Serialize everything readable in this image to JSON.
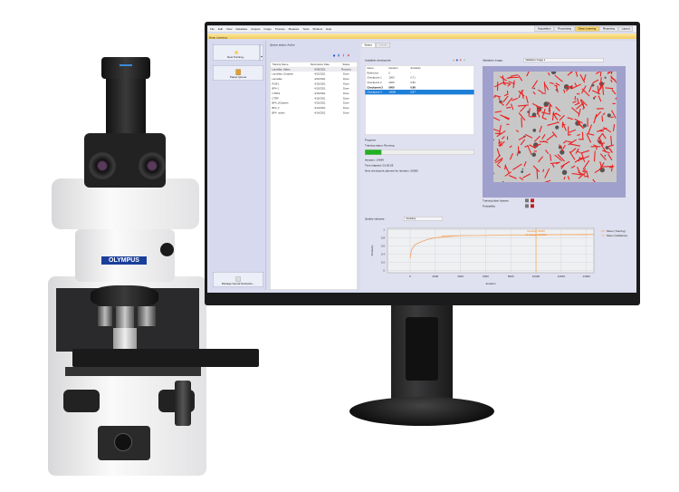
{
  "menu": [
    "File",
    "Edit",
    "View",
    "Database",
    "Acquire",
    "Image",
    "Process",
    "Measure",
    "Tools",
    "Window",
    "Help"
  ],
  "layouts": [
    "Acquisition",
    "Processing",
    "Deep Learning",
    "Reporting",
    "Layout"
  ],
  "active_layout": "Deep Learning",
  "toolbar_title": "Deep Learning",
  "left": {
    "new_training": "New Training...",
    "pause_queue": "Pause Queue",
    "manage": "Manage Neural Networks..."
  },
  "queue": {
    "status": "Queue status: Active",
    "columns": [
      "Training Name",
      "Submission Date",
      "Status"
    ],
    "rows": [
      [
        "Lamellae_flakes",
        "4/28/2021",
        "Running"
      ],
      [
        "Lamellae_Graphite",
        "4/22/2021",
        "Done"
      ],
      [
        "Lamellae",
        "4/22/2021",
        "Done"
      ],
      [
        "PCB-1",
        "4/15/2021",
        "Done"
      ],
      [
        "BF4-1",
        "4/15/2021",
        "Done"
      ],
      [
        "CTRF2",
        "4/15/2021",
        "Done"
      ],
      [
        "CTRF",
        "4/15/2021",
        "Done"
      ],
      [
        "BF4_2Classes",
        "4/15/2021",
        "Done"
      ],
      [
        "BF4_2",
        "4/14/2021",
        "Done"
      ],
      [
        "BF4_nettes",
        "4/14/2021",
        "Done"
      ]
    ]
  },
  "status_tabs": [
    "Status",
    "Details"
  ],
  "checkpoints": {
    "title": "Available checkpoints",
    "columns": [
      "Name",
      "Iteration",
      "Similarity"
    ],
    "rows": [
      [
        "Reference",
        "0",
        "-"
      ],
      [
        "Checkpoint 1",
        "1000",
        "0.71"
      ],
      [
        "Checkpoint 2",
        "2000",
        "0.80"
      ],
      [
        "Checkpoint 3",
        "5000",
        "0.88"
      ],
      [
        "Checkpoint 4",
        "10000",
        "0.87"
      ]
    ],
    "bold_row": 3,
    "selected_row": 4
  },
  "progress": {
    "label": "Progress",
    "status": "Training status: Running",
    "fraction": 0.15,
    "iteration": "Iteration: 14649",
    "elapsed": "Time elapsed: 01:05:28",
    "next": "Next checkpoint planned for iteration: 20000",
    "bar_color": "#22b022"
  },
  "validation": {
    "label": "Validation image:",
    "value": "Validation Image 1",
    "classes": "Training label classes",
    "probability": "Probability"
  },
  "quality": {
    "label": "Quality indicator:",
    "value": "Similarity"
  },
  "chart_data": {
    "type": "line",
    "xlabel": "Iteration",
    "ylabel": "Similarity",
    "xticks": [
      0,
      2000,
      4000,
      6000,
      8000,
      10000,
      12000,
      14000
    ],
    "yticks": [
      0,
      0.2,
      0.4,
      0.6,
      0.8,
      1
    ],
    "xlim": [
      -1800,
      14600
    ],
    "ylim": [
      -0.05,
      1.03
    ],
    "grid": true,
    "legend": "right",
    "series": [
      {
        "name": "Mean (Training)",
        "color": "#f0a060",
        "x": [
          0,
          100,
          300,
          500,
          1000,
          1500,
          2000,
          3000,
          4000,
          6000,
          8000,
          10000,
          12000,
          14000,
          14600
        ],
        "y": [
          0.3,
          0.5,
          0.6,
          0.65,
          0.72,
          0.77,
          0.8,
          0.83,
          0.85,
          0.86,
          0.87,
          0.87,
          0.88,
          0.88,
          0.88
        ]
      },
      {
        "name": "Mean (Validation)",
        "color": "#f6b880",
        "x": [
          2500,
          4000,
          6000,
          8000,
          10000,
          12000,
          14000
        ],
        "y": [
          0.85,
          0.85,
          0.86,
          0.87,
          0.86,
          0.88,
          0.87
        ]
      }
    ],
    "marker": {
      "x": 10000,
      "label1": "Iteration: 10000",
      "label2": "Similarity: 0.87352"
    }
  },
  "brand": "OLYMPUS"
}
